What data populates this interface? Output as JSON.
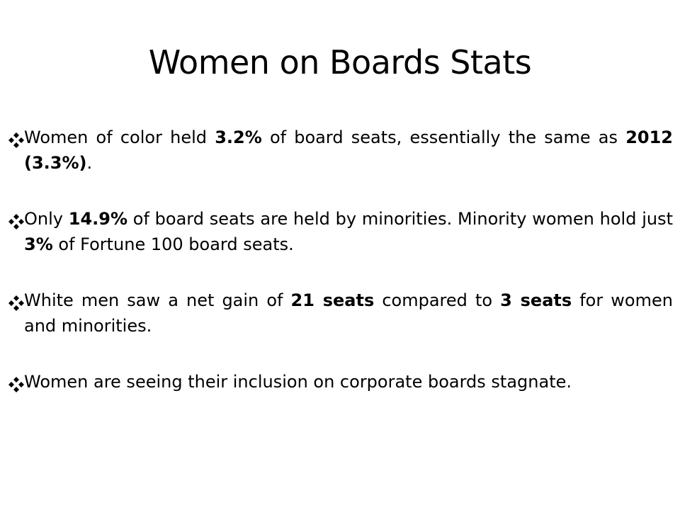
{
  "slide": {
    "title": "Women on Boards Stats",
    "bullets": [
      {
        "icon": "diamond-bullet-icon",
        "segments": [
          {
            "text": "Women of color held ",
            "bold": false
          },
          {
            "text": "3.2%",
            "bold": true
          },
          {
            "text": " of board seats, essentially the same as ",
            "bold": false
          },
          {
            "text": "2012 (3.3%)",
            "bold": true
          },
          {
            "text": ".",
            "bold": false
          }
        ]
      },
      {
        "icon": "diamond-bullet-icon",
        "segments": [
          {
            "text": "Only ",
            "bold": false
          },
          {
            "text": "14.9%",
            "bold": true
          },
          {
            "text": " of board seats are held by minorities. Minority women hold just ",
            "bold": false
          },
          {
            "text": "3%",
            "bold": true
          },
          {
            "text": " of Fortune 100 board seats.",
            "bold": false
          }
        ]
      },
      {
        "icon": "diamond-bullet-icon",
        "segments": [
          {
            "text": "White men saw a net gain of ",
            "bold": false
          },
          {
            "text": "21 seats",
            "bold": true
          },
          {
            "text": " compared to ",
            "bold": false
          },
          {
            "text": "3 seats",
            "bold": true
          },
          {
            "text": " for women and minorities.",
            "bold": false
          }
        ]
      },
      {
        "icon": "diamond-bullet-icon",
        "segments": [
          {
            "text": "Women are seeing their inclusion on corporate boards stagnate.",
            "bold": false
          }
        ]
      }
    ]
  }
}
